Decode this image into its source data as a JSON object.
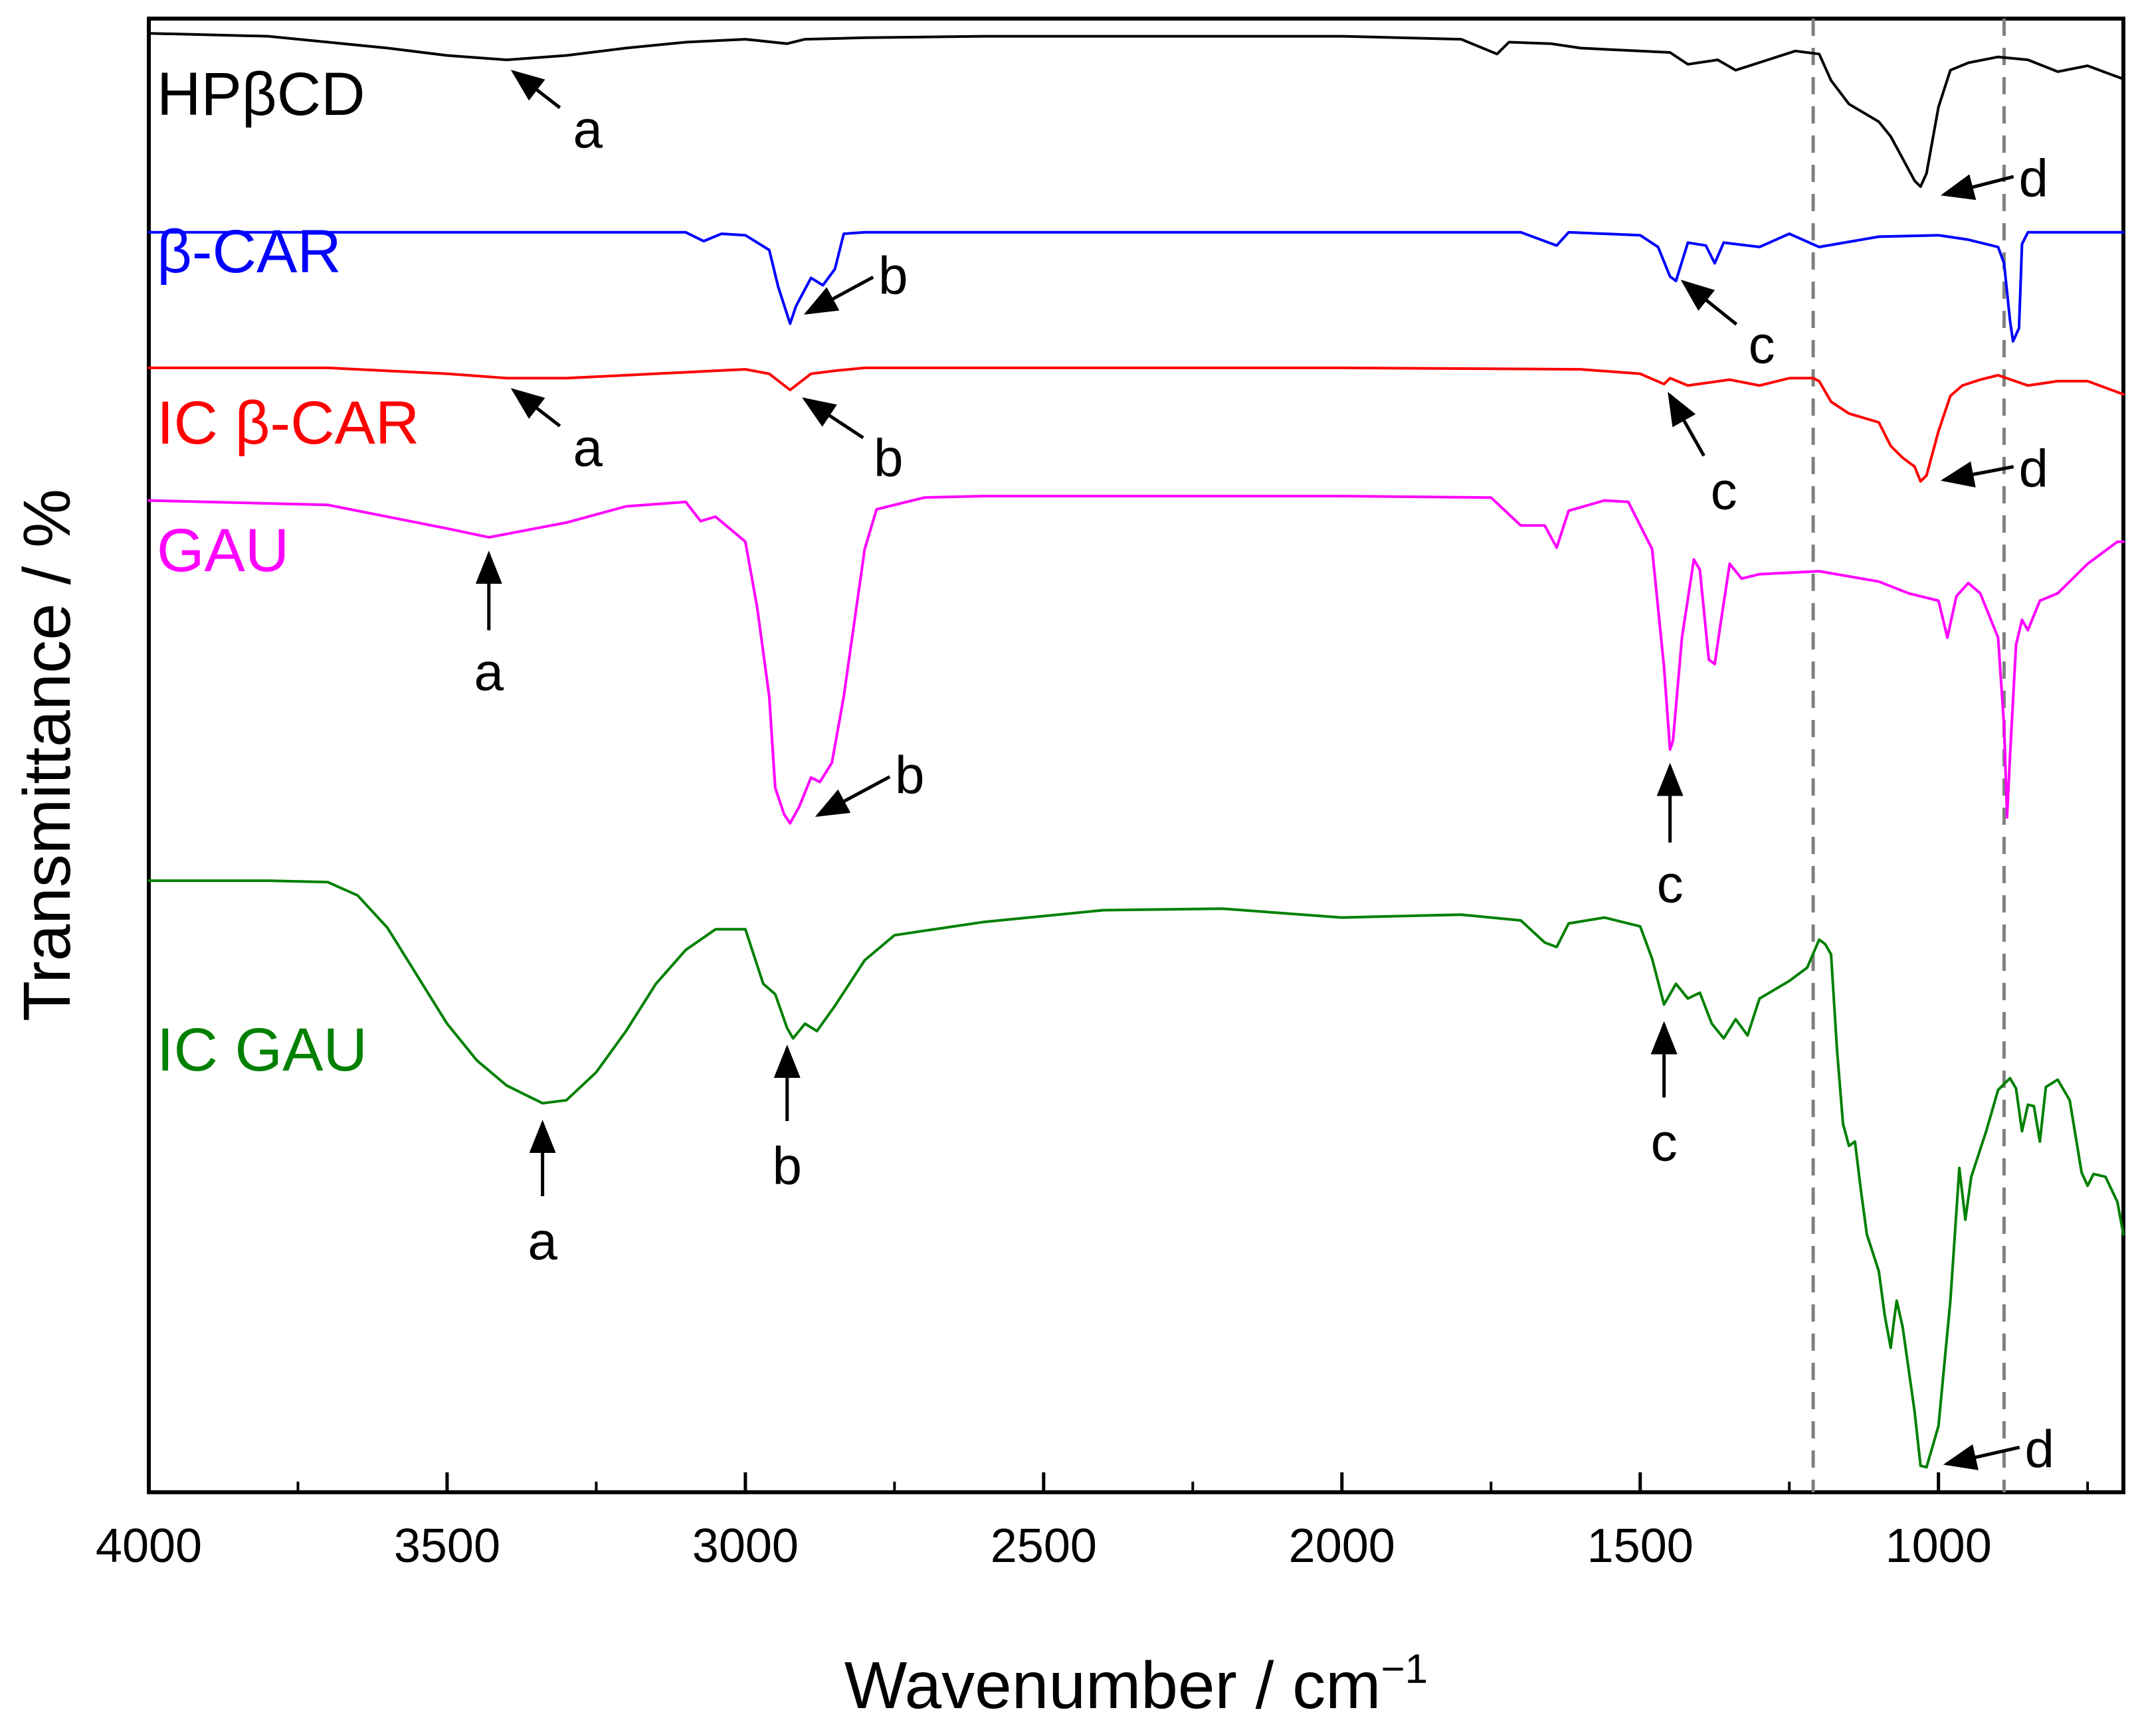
{
  "chart_data": {
    "type": "line",
    "title": "",
    "xlabel": "Wavenumber / cm",
    "xlabel_superscript": "−1",
    "ylabel": "Transmittance / %",
    "xlim": [
      4000,
      690
    ],
    "x_ticks": [
      4000,
      3500,
      3000,
      2500,
      2000,
      1500,
      1000
    ],
    "x_tick_labels": [
      "4000",
      "3500",
      "3000",
      "2500",
      "2000",
      "1500",
      "1000"
    ],
    "ylim": [
      0,
      100
    ],
    "y_ticks_shown": false,
    "reference_lines": [
      {
        "x": 1210,
        "style": "dashed",
        "color": "#808080"
      },
      {
        "x": 890,
        "style": "dashed",
        "color": "#808080"
      }
    ],
    "series": [
      {
        "name": "HPβCD",
        "color": "#000000",
        "x": [
          4000,
          3800,
          3600,
          3500,
          3400,
          3300,
          3200,
          3100,
          3000,
          2930,
          2900,
          2800,
          2600,
          2400,
          2200,
          2000,
          1800,
          1740,
          1720,
          1650,
          1600,
          1450,
          1420,
          1370,
          1340,
          1240,
          1200,
          1180,
          1150,
          1100,
          1080,
          1060,
          1040,
          1030,
          1020,
          1000,
          980,
          950,
          900,
          850,
          800,
          750,
          690
        ],
        "y": [
          99,
          98.8,
          98,
          97.5,
          97.2,
          97.5,
          98,
          98.4,
          98.6,
          98.3,
          98.6,
          98.7,
          98.8,
          98.8,
          98.8,
          98.8,
          98.6,
          97.6,
          98.4,
          98.3,
          98,
          97.7,
          96.9,
          97.2,
          96.5,
          97.8,
          97.6,
          95.8,
          94.2,
          93,
          92,
          90.5,
          89,
          88.6,
          89.5,
          94,
          96.5,
          97,
          97.4,
          97.2,
          96.4,
          96.8,
          95.9
        ]
      },
      {
        "name": "β-CAR",
        "color": "#0000ff",
        "x": [
          4000,
          3500,
          3100,
          3070,
          3040,
          3000,
          2960,
          2945,
          2925,
          2915,
          2890,
          2870,
          2850,
          2835,
          2800,
          2600,
          2000,
          1700,
          1640,
          1620,
          1500,
          1470,
          1450,
          1440,
          1420,
          1390,
          1375,
          1360,
          1300,
          1250,
          1200,
          1100,
          1000,
          950,
          900,
          890,
          880,
          875,
          865,
          860,
          850,
          800,
          690
        ],
        "y": [
          85.5,
          85.5,
          85.5,
          84.9,
          85.4,
          85.3,
          84.3,
          81.8,
          79.3,
          80.5,
          82.4,
          81.9,
          83,
          85.4,
          85.5,
          85.5,
          85.5,
          85.5,
          84.6,
          85.5,
          85.3,
          84.5,
          82.5,
          82.2,
          84.8,
          84.6,
          83.4,
          84.8,
          84.5,
          85.4,
          84.5,
          85.2,
          85.3,
          85,
          84.5,
          83.4,
          79.5,
          78.1,
          79,
          84.7,
          85.5,
          85.5,
          85.5
        ]
      },
      {
        "name": "IC β-CAR",
        "color": "#ff0000",
        "x": [
          4000,
          3700,
          3500,
          3400,
          3300,
          3200,
          3050,
          3000,
          2960,
          2925,
          2890,
          2850,
          2800,
          2600,
          2000,
          1600,
          1500,
          1460,
          1450,
          1420,
          1350,
          1300,
          1250,
          1210,
          1200,
          1180,
          1150,
          1100,
          1080,
          1060,
          1040,
          1030,
          1020,
          1000,
          980,
          960,
          930,
          900,
          850,
          800,
          750,
          690
        ],
        "y": [
          76.3,
          76.3,
          75.9,
          75.6,
          75.6,
          75.8,
          76.1,
          76.2,
          75.9,
          74.8,
          75.9,
          76.1,
          76.3,
          76.3,
          76.3,
          76.2,
          75.9,
          75.2,
          75.6,
          75.1,
          75.5,
          75.1,
          75.6,
          75.6,
          75.4,
          74,
          73.2,
          72.6,
          71,
          70.2,
          69.6,
          68.6,
          69,
          72,
          74.4,
          75.1,
          75.5,
          75.8,
          75.1,
          75.4,
          75.4,
          74.5
        ]
      },
      {
        "name": "GAU",
        "color": "#ff00ff",
        "x": [
          4000,
          3700,
          3500,
          3430,
          3300,
          3200,
          3100,
          3075,
          3050,
          3000,
          2980,
          2960,
          2950,
          2935,
          2925,
          2910,
          2890,
          2875,
          2855,
          2835,
          2800,
          2780,
          2700,
          2600,
          2000,
          1750,
          1700,
          1660,
          1640,
          1620,
          1560,
          1520,
          1480,
          1460,
          1450,
          1445,
          1430,
          1410,
          1400,
          1385,
          1375,
          1365,
          1350,
          1330,
          1300,
          1200,
          1100,
          1050,
          1000,
          985,
          970,
          950,
          930,
          900,
          890,
          885,
          880,
          870,
          860,
          850,
          830,
          800,
          750,
          700,
          690
        ],
        "y": [
          67.3,
          67,
          65.4,
          64.8,
          65.8,
          66.9,
          67.2,
          65.9,
          66.2,
          64.5,
          60,
          54,
          47.8,
          46,
          45.4,
          46.5,
          48.5,
          48.2,
          49.5,
          54,
          64,
          66.7,
          67.5,
          67.6,
          67.6,
          67.5,
          65.6,
          65.6,
          64.1,
          66.6,
          67.3,
          67.2,
          64,
          56,
          50.4,
          51,
          58,
          63.3,
          62.6,
          56.5,
          56.2,
          59,
          63,
          62,
          62.3,
          62.5,
          61.8,
          61,
          60.5,
          58,
          60.8,
          61.7,
          61,
          58,
          52,
          45.8,
          50,
          57.5,
          59.2,
          58.5,
          60.5,
          61,
          63,
          64.5,
          64.5
        ]
      },
      {
        "name": "IC GAU",
        "color": "#008000",
        "x": [
          4000,
          3800,
          3700,
          3650,
          3600,
          3500,
          3450,
          3400,
          3340,
          3300,
          3250,
          3200,
          3150,
          3100,
          3050,
          3000,
          2970,
          2950,
          2930,
          2920,
          2900,
          2880,
          2850,
          2800,
          2750,
          2600,
          2400,
          2200,
          2000,
          1800,
          1700,
          1660,
          1640,
          1620,
          1560,
          1500,
          1480,
          1460,
          1450,
          1440,
          1420,
          1400,
          1380,
          1360,
          1340,
          1320,
          1300,
          1250,
          1220,
          1200,
          1190,
          1180,
          1170,
          1160,
          1150,
          1140,
          1130,
          1120,
          1100,
          1090,
          1080,
          1075,
          1070,
          1060,
          1040,
          1030,
          1020,
          1000,
          980,
          965,
          955,
          945,
          920,
          900,
          880,
          870,
          860,
          850,
          840,
          830,
          820,
          800,
          780,
          760,
          750,
          740,
          720,
          700,
          690
        ],
        "y": [
          41.5,
          41.5,
          41.4,
          40.5,
          38.3,
          31.8,
          29.3,
          27.6,
          26.4,
          26.6,
          28.5,
          31.3,
          34.5,
          36.8,
          38.2,
          38.2,
          34.5,
          33.8,
          31.5,
          30.8,
          31.8,
          31.3,
          33,
          36.1,
          37.8,
          38.7,
          39.5,
          39.6,
          39,
          39.2,
          38.8,
          37.3,
          37,
          38.6,
          39,
          38.4,
          36.2,
          33.1,
          33.8,
          34.5,
          33.5,
          33.9,
          31.8,
          30.8,
          32.1,
          31,
          33.5,
          34.7,
          35.6,
          37.5,
          37.2,
          36.5,
          30,
          25,
          23.5,
          23.8,
          20.5,
          17.5,
          15,
          12,
          9.8,
          11.5,
          13,
          11.2,
          5.5,
          1.8,
          1.7,
          4.5,
          13,
          22,
          18.5,
          21.4,
          24.5,
          27.3,
          28.1,
          27.4,
          24.5,
          26.3,
          26.2,
          23.8,
          27.5,
          28,
          26.6,
          21.7,
          20.8,
          21.6,
          21.4,
          19.7,
          17.5
        ]
      }
    ],
    "series_labels": [
      {
        "series": "HPβCD",
        "text": "HPβCD"
      },
      {
        "series": "β-CAR",
        "text": "β-CAR"
      },
      {
        "series": "IC β-CAR",
        "text": "IC β-CAR"
      },
      {
        "series": "GAU",
        "text": "GAU"
      },
      {
        "series": "IC GAU",
        "text": "IC GAU"
      }
    ],
    "annotations": [
      {
        "series": "HPβCD",
        "label": "a",
        "x": 3400
      },
      {
        "series": "HPβCD",
        "label": "d",
        "x": 1030
      },
      {
        "series": "β-CAR",
        "label": "b",
        "x": 2925
      },
      {
        "series": "β-CAR",
        "label": "c",
        "x": 1450
      },
      {
        "series": "IC β-CAR",
        "label": "a",
        "x": 3400
      },
      {
        "series": "IC β-CAR",
        "label": "b",
        "x": 2925
      },
      {
        "series": "IC β-CAR",
        "label": "c",
        "x": 1460
      },
      {
        "series": "IC β-CAR",
        "label": "d",
        "x": 1030
      },
      {
        "series": "GAU",
        "label": "a",
        "x": 3430
      },
      {
        "series": "GAU",
        "label": "b",
        "x": 2925
      },
      {
        "series": "GAU",
        "label": "c",
        "x": 1450
      },
      {
        "series": "IC GAU",
        "label": "a",
        "x": 3340
      },
      {
        "series": "IC GAU",
        "label": "b",
        "x": 2930
      },
      {
        "series": "IC GAU",
        "label": "c",
        "x": 1460
      },
      {
        "series": "IC GAU",
        "label": "d",
        "x": 1020
      }
    ]
  }
}
